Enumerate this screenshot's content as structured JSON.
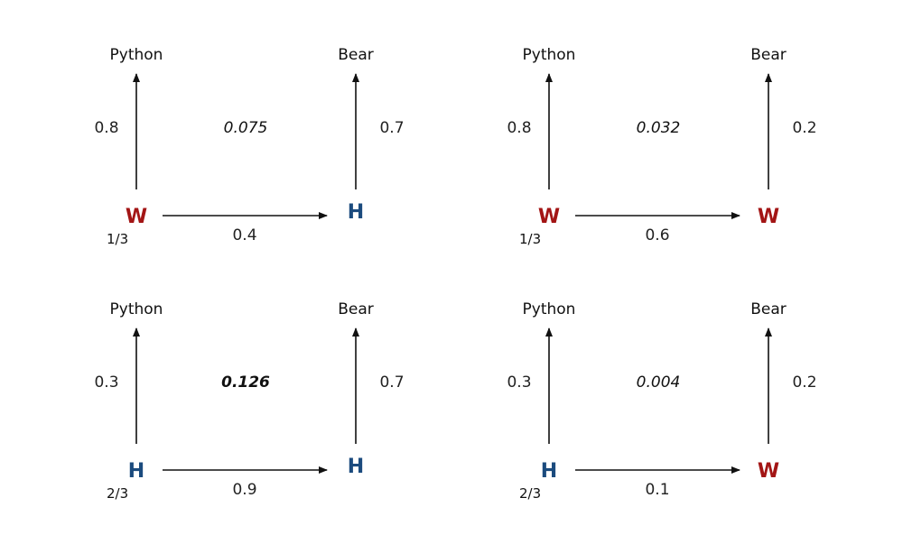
{
  "colors": {
    "W": "#a31515",
    "H": "#1b4b7e",
    "arrow": "#111111"
  },
  "panels": [
    {
      "id": "top-left",
      "left_state": "W",
      "right_state": "H",
      "left_obs": "Python",
      "right_obs": "Bear",
      "left_emission": "0.8",
      "right_emission": "0.7",
      "transition": "0.4",
      "initial": "1/3",
      "sequence_prob": "0.075",
      "highlight": false
    },
    {
      "id": "top-right",
      "left_state": "W",
      "right_state": "W",
      "left_obs": "Python",
      "right_obs": "Bear",
      "left_emission": "0.8",
      "right_emission": "0.2",
      "transition": "0.6",
      "initial": "1/3",
      "sequence_prob": "0.032",
      "highlight": false
    },
    {
      "id": "bottom-left",
      "left_state": "H",
      "right_state": "H",
      "left_obs": "Python",
      "right_obs": "Bear",
      "left_emission": "0.3",
      "right_emission": "0.7",
      "transition": "0.9",
      "initial": "2/3",
      "sequence_prob": "0.126",
      "highlight": true
    },
    {
      "id": "bottom-right",
      "left_state": "H",
      "right_state": "W",
      "left_obs": "Python",
      "right_obs": "Bear",
      "left_emission": "0.3",
      "right_emission": "0.2",
      "transition": "0.1",
      "initial": "2/3",
      "sequence_prob": "0.004",
      "highlight": false
    }
  ]
}
